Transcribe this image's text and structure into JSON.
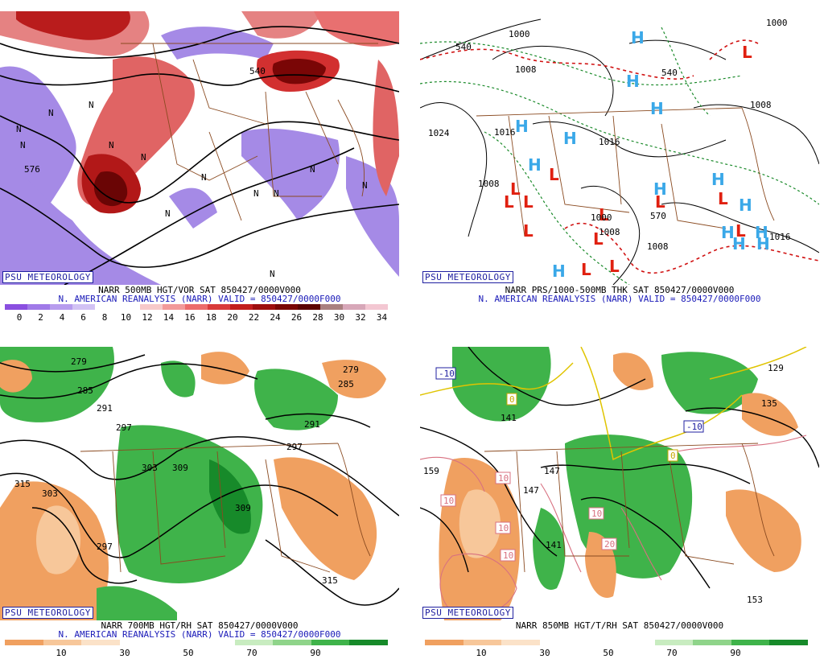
{
  "panels": [
    {
      "id": "vor",
      "psu_label": "PSU METEOROLOGY",
      "title_line1": "NARR 500MB HGT/VOR SAT 850427/0000V000",
      "title_line2": "N. AMERICAN REANALYSIS (NARR) VALID = 850427/0000F000",
      "colorbar": {
        "colors": [
          "#8a4fe0",
          "#a07ae8",
          "#b79cee",
          "#d2c2f4",
          "#ffffff",
          "#ffffff",
          "#f7c9c9",
          "#f29a9a",
          "#ec6b6b",
          "#d93b3b",
          "#c21d1d",
          "#9e0e0e",
          "#7a0606",
          "#5c0303",
          "#a98080",
          "#d7a7b8",
          "#f3c7d2"
        ],
        "ticks": [
          "0",
          "2",
          "4",
          "6",
          "8",
          "10",
          "12",
          "14",
          "16",
          "18",
          "20",
          "22",
          "24",
          "26",
          "28",
          "30",
          "32",
          "34"
        ]
      },
      "contour_labels": [
        "576",
        "540",
        "N",
        "N",
        "N",
        "N",
        "N",
        "N",
        "N",
        "N",
        "N",
        "N",
        "N",
        "N",
        "N"
      ]
    },
    {
      "id": "prs",
      "psu_label": "PSU METEOROLOGY",
      "title_line1": "NARR PRS/1000-500MB THK SAT 850427/0000V000",
      "title_line2": "N. AMERICAN REANALYSIS (NARR) VALID = 850427/0000F000",
      "contour_labels": [
        "1000",
        "1008",
        "1024",
        "1016",
        "1016",
        "1008",
        "1000",
        "1000",
        "1008",
        "1016",
        "1008",
        "1008",
        "570",
        "540",
        "540"
      ],
      "highs": 14,
      "lows": 13
    },
    {
      "id": "rh",
      "psu_label": "PSU METEOROLOGY",
      "title_line1": "NARR 700MB HGT/RH SAT 850427/0000V000",
      "title_line2": "N. AMERICAN REANALYSIS (NARR) VALID = 850427/0000F000",
      "colorbar": {
        "colors": [
          "#f0a060",
          "#f7c79a",
          "#fbe2c8",
          "#ffffff",
          "#ffffff",
          "#ffffff",
          "#c8ecc0",
          "#8fd48a",
          "#3fb34a",
          "#178a2a"
        ],
        "ticks": [
          "10",
          "30",
          "50",
          "70",
          "90"
        ]
      },
      "contour_labels": [
        "279",
        "285",
        "291",
        "297",
        "303",
        "309",
        "315",
        "315",
        "297",
        "291",
        "297",
        "303",
        "309",
        "279",
        "285"
      ]
    },
    {
      "id": "t",
      "psu_label": "PSU METEOROLOGY",
      "title_line1": "NARR 850MB HGT/T/RH SAT 850427/0000V000",
      "title_line2": "",
      "colorbar": {
        "colors": [
          "#f0a060",
          "#f7c79a",
          "#fbe2c8",
          "#ffffff",
          "#ffffff",
          "#ffffff",
          "#c8ecc0",
          "#8fd48a",
          "#3fb34a",
          "#178a2a"
        ],
        "ticks": [
          "10",
          "30",
          "50",
          "70",
          "90"
        ]
      },
      "contour_labels": [
        "-10",
        "-10",
        "0",
        "0",
        "10",
        "10",
        "10",
        "10",
        "10",
        "20",
        "141",
        "147",
        "147",
        "153",
        "159",
        "129",
        "135",
        "141"
      ]
    }
  ]
}
